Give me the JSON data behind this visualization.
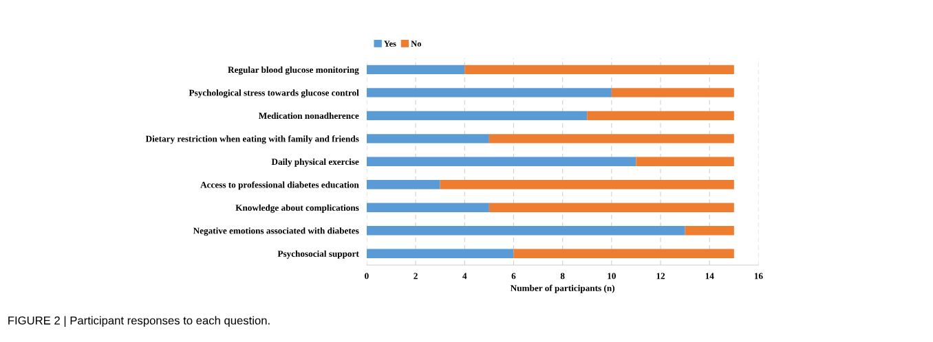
{
  "chart_data": {
    "type": "bar",
    "orientation": "horizontal",
    "stacked": true,
    "categories": [
      "Regular blood glucose monitoring",
      "Psychological stress towards glucose control",
      "Medication nonadherence",
      "Dietary restriction when eating with family and friends",
      "Daily physical exercise",
      "Access to professional diabetes education",
      "Knowledge about complications",
      "Negative emotions associated with diabetes",
      "Psychosocial support"
    ],
    "series": [
      {
        "name": "Yes",
        "color": "#5b9bd5",
        "values": [
          4,
          10,
          9,
          5,
          11,
          3,
          5,
          13,
          6
        ]
      },
      {
        "name": "No",
        "color": "#ed7d31",
        "values": [
          11,
          5,
          6,
          10,
          4,
          12,
          10,
          2,
          9
        ]
      }
    ],
    "xlabel": "Number of participants (n)",
    "xlim": [
      0,
      16
    ],
    "xticks": [
      0,
      2,
      4,
      6,
      8,
      10,
      12,
      14,
      16
    ],
    "grid": "x",
    "legend": "top",
    "annotations": [
      "FIGURE 2 | Participant responses to each question."
    ]
  }
}
